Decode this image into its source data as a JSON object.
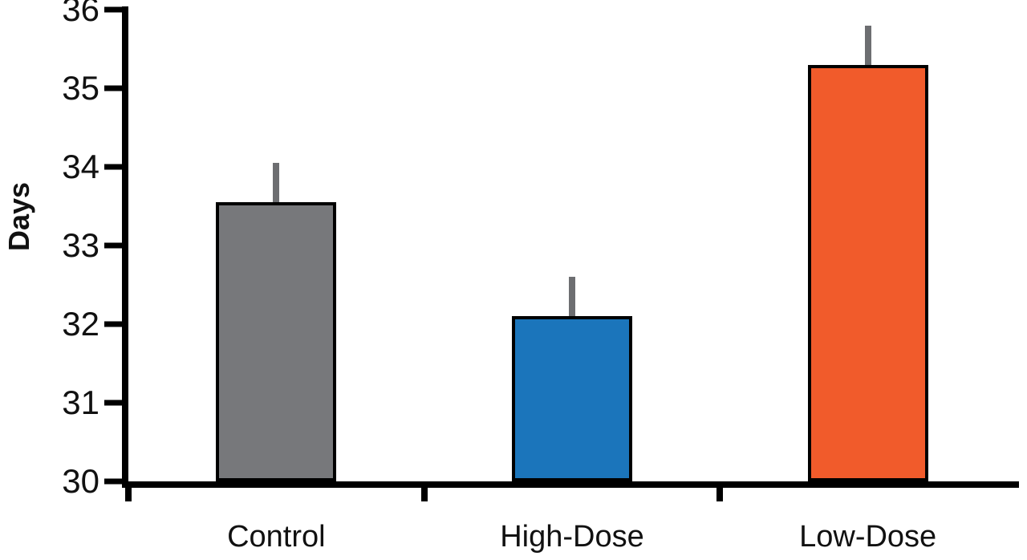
{
  "chart_data": {
    "type": "bar",
    "title": "",
    "xlabel": "",
    "ylabel": "Days",
    "categories": [
      "Control",
      "High-Dose",
      "Low-Dose"
    ],
    "values": [
      33.55,
      32.1,
      35.3
    ],
    "errors_upper": [
      0.5,
      0.5,
      0.5
    ],
    "bar_colors": [
      "#77787B",
      "#1B75BB",
      "#F15B2B"
    ],
    "error_bar_color": "#6D6E71",
    "axis_color": "#000000",
    "ylim": [
      30,
      36
    ],
    "yticks": [
      30,
      31,
      32,
      33,
      34,
      35,
      36
    ],
    "grid": false,
    "legend": false
  }
}
